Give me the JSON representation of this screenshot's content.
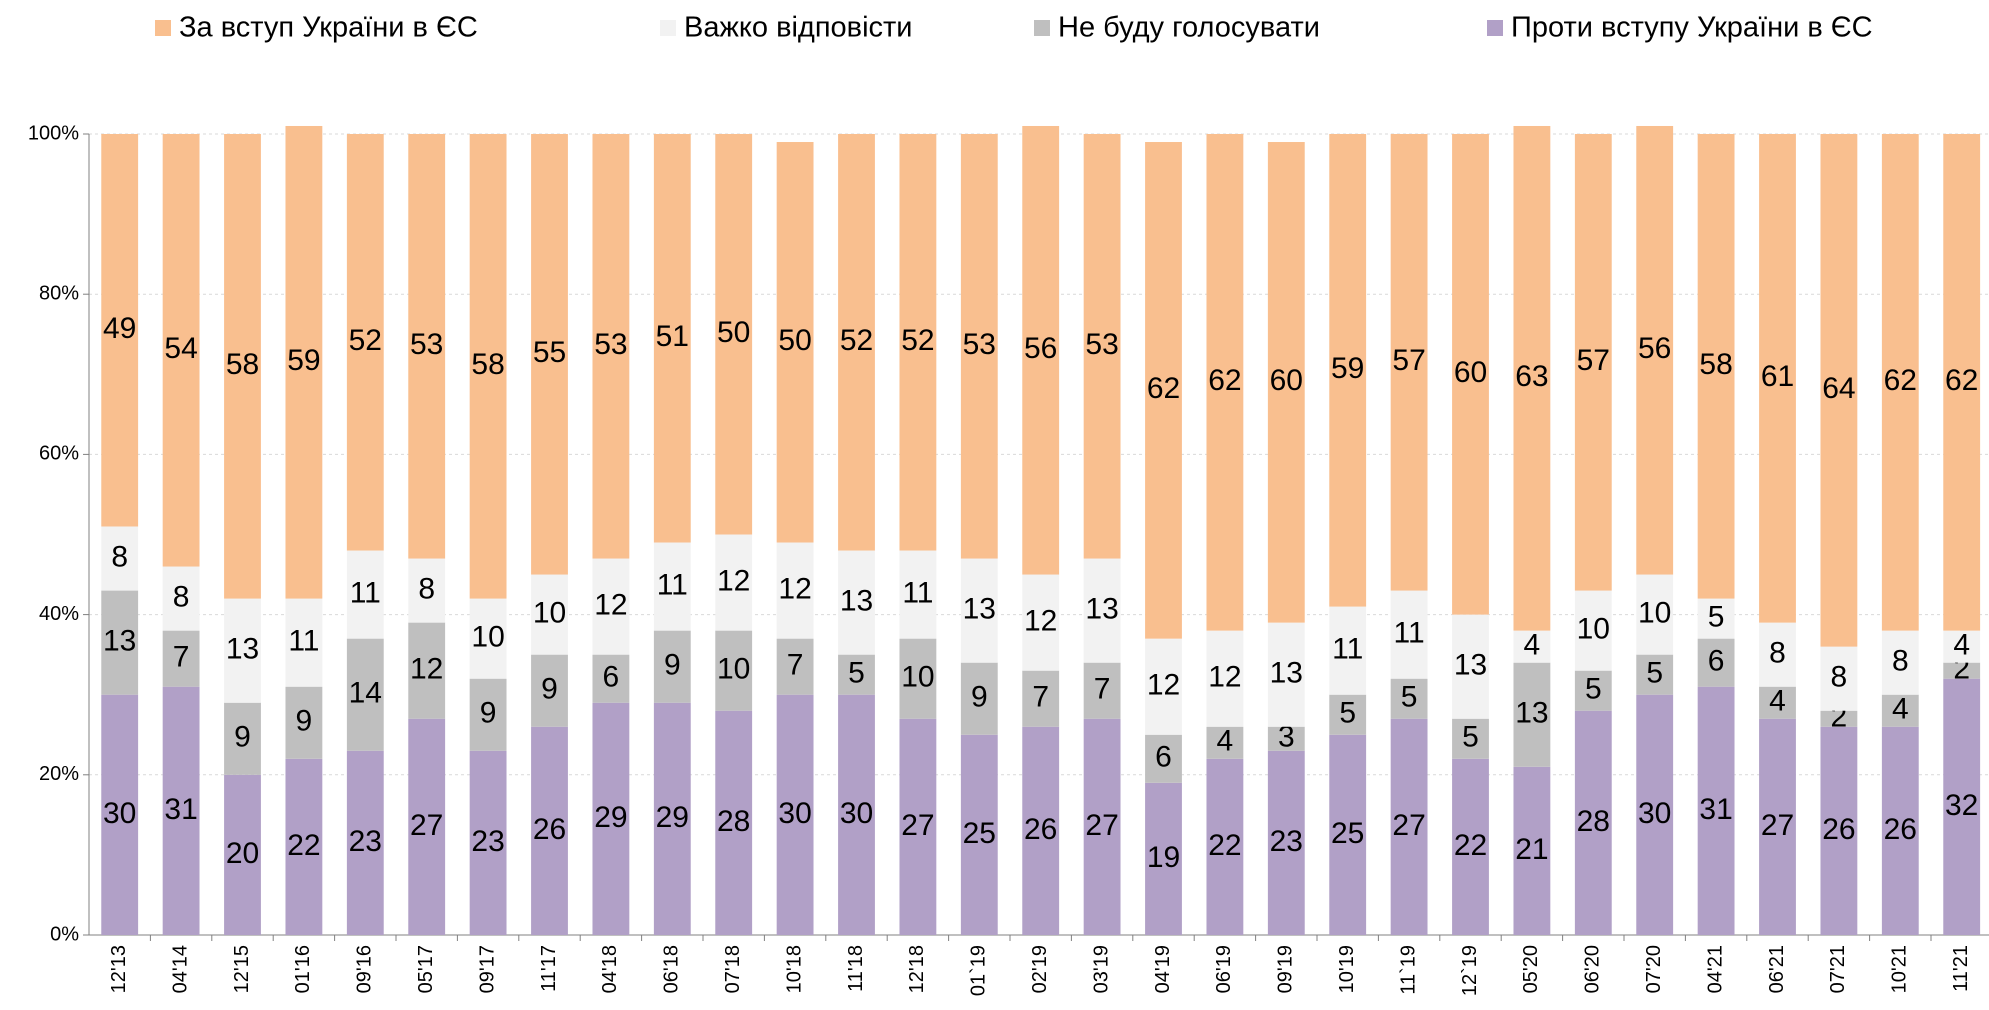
{
  "chart_data": {
    "type": "stacked_bar",
    "categories": [
      "12'13",
      "04'14",
      "12'15",
      "01'16",
      "09'16",
      "05'17",
      "09'17",
      "11'17",
      "04'18",
      "06'18",
      "07'18",
      "10'18",
      "11'18",
      "12'18",
      "01`19",
      "02'19",
      "03'19",
      "04'19",
      "06'19",
      "09'19",
      "10'19",
      "11`19",
      "12`19",
      "05'20",
      "06'20",
      "07'20",
      "04'21",
      "06'21",
      "07'21",
      "10'21",
      "11'21"
    ],
    "series": [
      {
        "name": "Проти вступу України в ЄС",
        "color": "#b1a0c7",
        "values": [
          30,
          31,
          20,
          22,
          23,
          27,
          23,
          26,
          29,
          29,
          28,
          30,
          30,
          27,
          25,
          26,
          27,
          19,
          22,
          23,
          25,
          27,
          22,
          21,
          28,
          30,
          31,
          27,
          26,
          26,
          32
        ]
      },
      {
        "name": "Не буду голосувати",
        "color": "#bfbfbf",
        "values": [
          13,
          7,
          9,
          9,
          14,
          12,
          9,
          9,
          6,
          9,
          10,
          7,
          5,
          10,
          9,
          7,
          7,
          6,
          4,
          3,
          5,
          5,
          5,
          13,
          5,
          5,
          6,
          4,
          2,
          4,
          2
        ]
      },
      {
        "name": "Важко відповісти",
        "color": "#f2f2f2",
        "values": [
          8,
          8,
          13,
          11,
          11,
          8,
          10,
          10,
          12,
          11,
          12,
          12,
          13,
          11,
          13,
          12,
          13,
          12,
          12,
          13,
          11,
          11,
          13,
          4,
          10,
          10,
          5,
          8,
          8,
          8,
          4
        ]
      },
      {
        "name": "За вступ України в ЄС",
        "color": "#f9bf8f",
        "values": [
          49,
          54,
          58,
          59,
          52,
          53,
          58,
          55,
          53,
          51,
          50,
          50,
          52,
          52,
          53,
          56,
          53,
          62,
          62,
          60,
          59,
          57,
          60,
          63,
          57,
          56,
          58,
          61,
          64,
          62,
          62
        ]
      }
    ],
    "legend_order": [
      3,
      2,
      1,
      0
    ],
    "ylim": [
      0,
      100
    ],
    "yticks": [
      {
        "value": 0,
        "label": "0%"
      },
      {
        "value": 20,
        "label": "20%"
      },
      {
        "value": 40,
        "label": "40%"
      },
      {
        "value": 60,
        "label": "60%"
      },
      {
        "value": 80,
        "label": "80%"
      },
      {
        "value": 100,
        "label": "100%"
      }
    ],
    "grid": true
  }
}
